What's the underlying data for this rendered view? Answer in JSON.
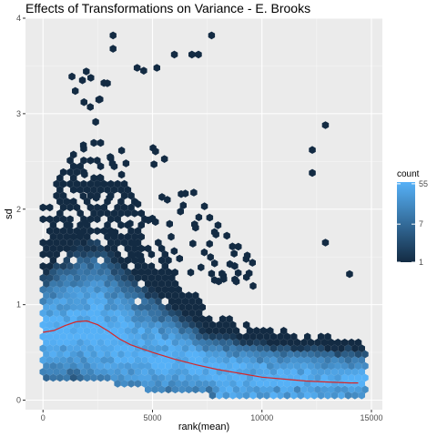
{
  "chart_data": {
    "type": "hexbin",
    "title": "Effects of Transformations on Variance - E. Brooks",
    "xlabel": "rank(mean)",
    "ylabel": "sd",
    "xlim": [
      -800,
      15500
    ],
    "ylim": [
      -0.1,
      4.0
    ],
    "x_ticks": [
      0,
      5000,
      10000,
      15000
    ],
    "x_tick_labels": [
      "0",
      "5000",
      "10000",
      "15000"
    ],
    "y_ticks": [
      0,
      1,
      2,
      3,
      4
    ],
    "y_tick_labels": [
      "0",
      "1",
      "2",
      "3",
      "4"
    ],
    "grid": true,
    "background": "#ebebeb",
    "legend": {
      "title": "count",
      "position": "right",
      "scale": "log",
      "breaks": [
        55,
        7,
        1
      ],
      "break_labels": [
        "55",
        "7",
        "1"
      ],
      "color_low": "#132B43",
      "color_high": "#56B1F7"
    },
    "hexbins_approx": [
      {
        "x": 3200,
        "y": 3.82,
        "count": 1
      },
      {
        "x": 3200,
        "y": 3.68,
        "count": 1
      },
      {
        "x": 7700,
        "y": 3.82,
        "count": 1
      },
      {
        "x": 4300,
        "y": 3.48,
        "count": 1
      },
      {
        "x": 4600,
        "y": 3.45,
        "count": 1
      },
      {
        "x": 5200,
        "y": 3.48,
        "count": 1
      },
      {
        "x": 6000,
        "y": 3.62,
        "count": 1
      },
      {
        "x": 6800,
        "y": 3.62,
        "count": 1
      },
      {
        "x": 7100,
        "y": 3.62,
        "count": 1
      },
      {
        "x": 2600,
        "y": 3.15,
        "count": 1
      },
      {
        "x": 1800,
        "y": 3.35,
        "count": 1
      },
      {
        "x": 12900,
        "y": 2.88,
        "count": 1
      },
      {
        "x": 12300,
        "y": 2.62,
        "count": 1
      },
      {
        "x": 12300,
        "y": 2.38,
        "count": 1
      },
      {
        "x": 12900,
        "y": 1.65,
        "count": 1
      },
      {
        "x": 14000,
        "y": 1.32,
        "count": 1
      }
    ],
    "trend_line": {
      "name": "",
      "color": "#d62728",
      "x": [
        0,
        500,
        1000,
        1500,
        2000,
        2500,
        3000,
        3500,
        4000,
        5000,
        6000,
        7000,
        8000,
        9000,
        10000,
        11000,
        12000,
        13000,
        14000,
        14400
      ],
      "y": [
        0.71,
        0.73,
        0.78,
        0.82,
        0.83,
        0.79,
        0.72,
        0.64,
        0.58,
        0.5,
        0.43,
        0.37,
        0.32,
        0.28,
        0.24,
        0.22,
        0.2,
        0.19,
        0.18,
        0.18
      ]
    }
  }
}
